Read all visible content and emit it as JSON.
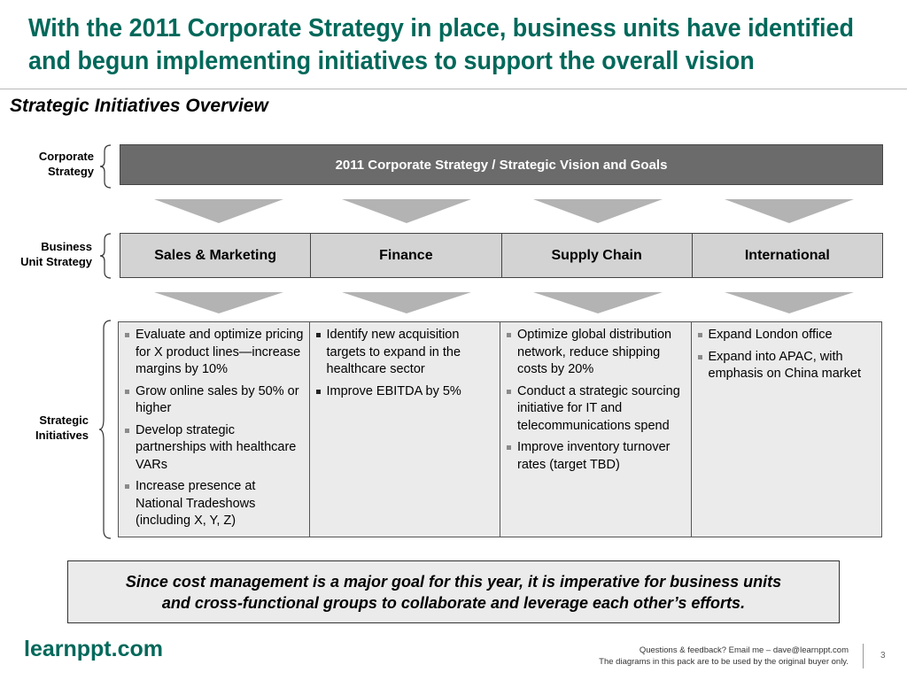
{
  "title": {
    "line1": "With the 2011 Corporate Strategy in place, business units have identified",
    "line2": "and begun implementing initiatives to support the overall vision"
  },
  "subtitle": "Strategic Initiatives Overview",
  "row_labels": {
    "corporate": "Corporate\nStrategy",
    "business_unit": "Business\nUnit Strategy",
    "initiatives": "Strategic\nInitiatives"
  },
  "corporate_box": "2011 Corporate Strategy  / Strategic Vision and Goals",
  "business_units": [
    "Sales & Marketing",
    "Finance",
    "Supply Chain",
    "International"
  ],
  "initiatives": [
    {
      "bullet_style": "gray",
      "items": [
        "Evaluate and optimize pricing for X product lines—increase margins by 10%",
        "Grow online sales by 50% or higher",
        "Develop strategic partnerships with healthcare VARs",
        "Increase presence at National Tradeshows (including X, Y, Z)"
      ]
    },
    {
      "bullet_style": "dark",
      "items": [
        "Identify new acquisition targets to expand in the healthcare sector",
        "Improve EBITDA by 5%"
      ]
    },
    {
      "bullet_style": "gray",
      "items": [
        "Optimize global distribution network, reduce shipping costs by 20%",
        "Conduct a strategic sourcing initiative for IT and telecommunications spend",
        "Improve inventory turnover rates (target TBD)"
      ]
    },
    {
      "bullet_style": "gray",
      "items": [
        "Expand London office",
        "Expand into APAC, with emphasis on China market"
      ]
    }
  ],
  "callout": {
    "line1": "Since cost management is a major goal for this year, it is imperative for business units",
    "line2": "and cross-functional groups to collaborate and leverage each other’s efforts."
  },
  "footer": {
    "logo": "learnppt.com",
    "line1": "Questions & feedback?  Email me – dave@learnppt.com",
    "line2": "The diagrams in this pack are to be used by the original buyer only.",
    "page_number": "3"
  },
  "colors": {
    "brand_green": "#00685a",
    "corporate_box": "#6b6b6b",
    "unit_box": "#d3d3d3",
    "initiative_box": "#ebebeb",
    "arrow": "#b3b3b3"
  }
}
